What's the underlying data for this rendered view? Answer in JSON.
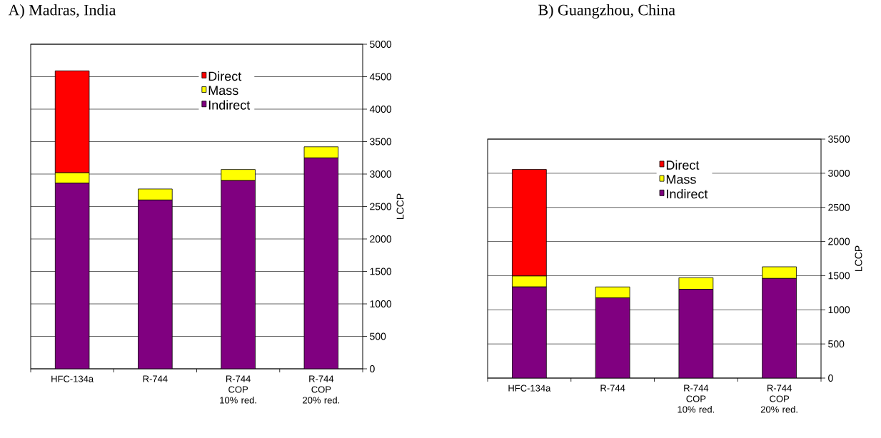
{
  "chart_data": [
    {
      "type": "bar",
      "title": "A) Madras, India",
      "ylabel": "LCCP",
      "categories": [
        "HFC-134a",
        "R-744",
        "R-744 COP 10% red.",
        "R-744 COP 20% red."
      ],
      "stacked": true,
      "ylim": [
        0,
        5000
      ],
      "yticks": [
        0,
        500,
        1000,
        1500,
        2000,
        2500,
        3000,
        3500,
        4000,
        4500,
        5000
      ],
      "grid": "y",
      "legend": "top",
      "series": [
        {
          "name": "Indirect",
          "color": "#800080",
          "values": [
            2860,
            2600,
            2900,
            3250
          ]
        },
        {
          "name": "Mass",
          "color": "#ffff00",
          "values": [
            160,
            170,
            170,
            170
          ]
        },
        {
          "name": "Direct",
          "color": "#ff0000",
          "values": [
            1570,
            0,
            0,
            0
          ]
        }
      ]
    },
    {
      "type": "bar",
      "title": "B) Guangzhou, China",
      "ylabel": "LCCP",
      "categories": [
        "HFC-134a",
        "R-744",
        "R-744 COP 10% red.",
        "R-744 COP 20% red."
      ],
      "stacked": true,
      "ylim": [
        0,
        3500
      ],
      "yticks": [
        0,
        500,
        1000,
        1500,
        2000,
        2500,
        3000,
        3500
      ],
      "grid": "y",
      "legend": "top",
      "series": [
        {
          "name": "Indirect",
          "color": "#800080",
          "values": [
            1335,
            1175,
            1300,
            1460
          ]
        },
        {
          "name": "Mass",
          "color": "#ffff00",
          "values": [
            160,
            160,
            170,
            170
          ]
        },
        {
          "name": "Direct",
          "color": "#ff0000",
          "values": [
            1560,
            0,
            0,
            0
          ]
        }
      ]
    }
  ]
}
